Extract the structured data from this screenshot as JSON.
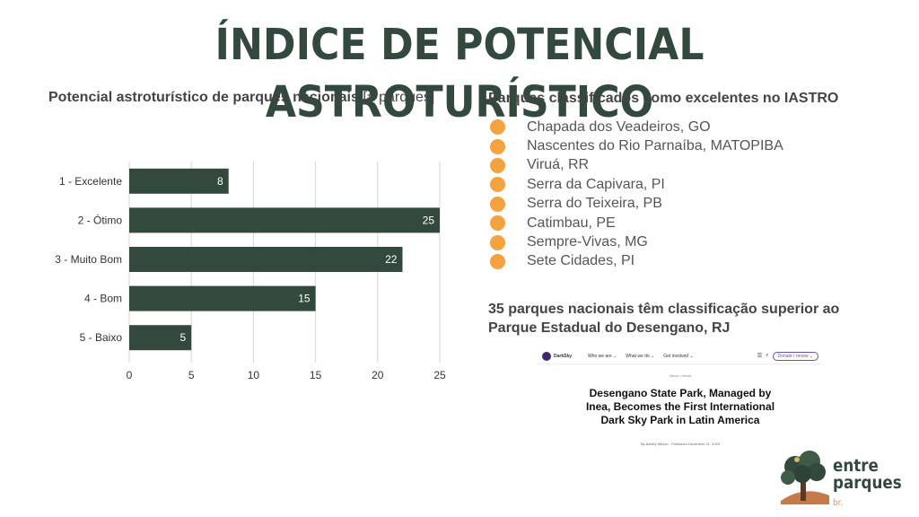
{
  "title": "ÍNDICE DE POTENCIAL ASTROTURÍSTICO",
  "chart_heading": {
    "bold": "Potencial astroturístico de parques nacionais",
    "suffix": " [# parques]"
  },
  "chart_data": {
    "type": "bar",
    "orientation": "horizontal",
    "categories": [
      "1 - Excelente",
      "2 - Ótimo",
      "3 - Muito Bom",
      "4 - Bom",
      "5 - Baixo"
    ],
    "values": [
      8,
      25,
      22,
      15,
      5
    ],
    "xlim": [
      0,
      25
    ],
    "xticks": [
      0,
      5,
      10,
      15,
      20,
      25
    ],
    "grid": true,
    "data_labels": true,
    "bar_color": "#34493d",
    "label_color": "#ffffff"
  },
  "parks": {
    "title": "Parques classificados como excelentes no IASTRO",
    "bullet_color": "#f4a13f",
    "items": [
      "Chapada dos Veadeiros, GO",
      "Nascentes do Rio Parnaíba, MATOPIBA",
      "Viruá, RR",
      "Serra da Capivara, PI",
      "Serra do Teixeira, PB",
      "Catimbau, PE",
      "Sempre-Vivas, MG",
      "Sete Cidades, PI"
    ]
  },
  "highlight": "35 parques nacionais têm classificação superior ao Parque Estadual do Desengano, RJ",
  "article": {
    "brand": "DarkSky",
    "nav": [
      "Who we are ⌄",
      "What we do ⌄",
      "Get involved ⌄"
    ],
    "donate": "Donate / renew ⌄",
    "breadcrumb": "News > News",
    "headline": "Desengano State Park, Managed by Inea, Becomes the First International Dark Sky Park in Latin America",
    "byline": "By Ashley Wilson · Published December 21, 2023"
  },
  "logo": {
    "line1": "entre",
    "line2": "parques",
    "suffix": "br."
  }
}
